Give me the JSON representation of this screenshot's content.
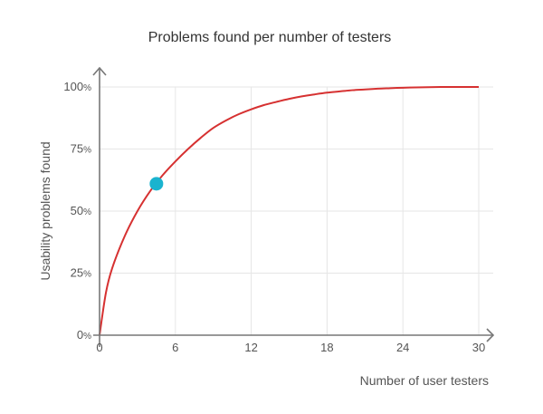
{
  "chart_data": {
    "type": "line",
    "title": "Problems found per number of testers",
    "xlabel": "Number of user testers",
    "ylabel": "Usability problems found",
    "xlim": [
      0,
      30
    ],
    "ylim": [
      0,
      100
    ],
    "x_ticks": [
      "0",
      "6",
      "12",
      "18",
      "24",
      "30"
    ],
    "y_ticks": [
      {
        "value": "0",
        "unit": "%"
      },
      {
        "value": "25",
        "unit": "%"
      },
      {
        "value": "50",
        "unit": "%"
      },
      {
        "value": "75",
        "unit": "%"
      },
      {
        "value": "100",
        "unit": "%"
      }
    ],
    "grid": true,
    "series": [
      {
        "color": "#d63131",
        "x": [
          0,
          0.5,
          1,
          2,
          3,
          4,
          5,
          6,
          7,
          8,
          9,
          10,
          11,
          12,
          13,
          14,
          15,
          16,
          17,
          18,
          19,
          20,
          21,
          22,
          23,
          24,
          25,
          26,
          27,
          28,
          29,
          30
        ],
        "values": [
          0,
          17,
          27,
          40,
          50,
          58,
          64.5,
          70,
          75,
          79.5,
          83.5,
          86.5,
          89,
          91,
          92.7,
          94,
          95.2,
          96.2,
          97,
          97.7,
          98.2,
          98.7,
          99,
          99.3,
          99.5,
          99.7,
          99.8,
          99.9,
          100,
          100,
          100,
          100
        ]
      }
    ],
    "highlight_point": {
      "x": 4.5,
      "y": 61,
      "color": "#1ab3cf"
    }
  }
}
